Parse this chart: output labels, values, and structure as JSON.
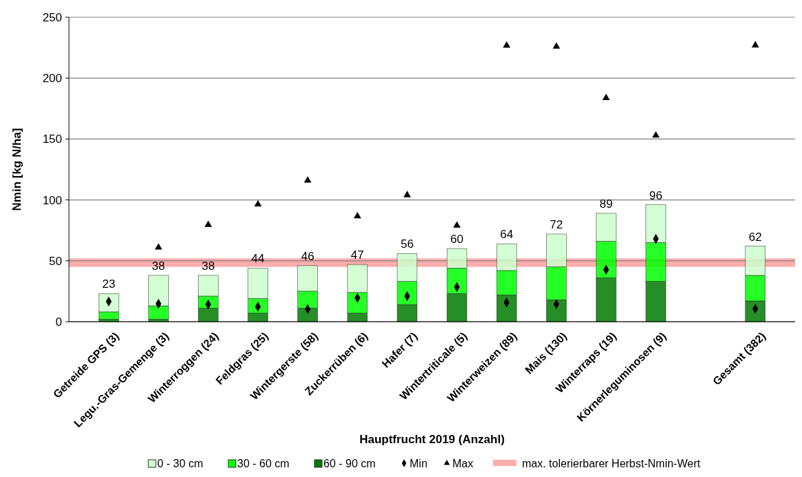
{
  "chart_data": {
    "type": "bar",
    "stacked": true,
    "xlabel": "Hauptfrucht 2019 (Anzahl)",
    "ylabel": "Nmin [kg N/ha]",
    "categories": [
      "Getreide GPS (3)",
      "Legu.-Gras-Gemenge (3)",
      "Winterroggen (24)",
      "Feldgras (25)",
      "Wintergerste (58)",
      "Zuckerrüben (6)",
      "Hafer (7)",
      "Wintertriticale (5)",
      "Winterweizen (89)",
      "Mais (130)",
      "Winterraps (19)",
      "Körnerleguminosen (9)",
      null,
      "Gesamt (382)"
    ],
    "series": [
      {
        "name": "60 - 90 cm",
        "color": "#007a00",
        "values": [
          2,
          2,
          11,
          7,
          11,
          7,
          14,
          23,
          22,
          18,
          36,
          33,
          null,
          17
        ]
      },
      {
        "name": "30 - 60 cm",
        "color": "#00ff00",
        "values": [
          6,
          11,
          10,
          12,
          14,
          17,
          19,
          21,
          20,
          27,
          30,
          32,
          null,
          21
        ]
      },
      {
        "name": "0 - 30 cm",
        "color": "#ccffcc",
        "values": [
          15,
          25,
          17,
          25,
          21,
          23,
          23,
          16,
          22,
          27,
          23,
          31,
          null,
          24
        ]
      },
      {
        "name": "Min",
        "type": "scatter",
        "marker": "diamond",
        "color": "#000000",
        "values": [
          16.6,
          14.7,
          14.2,
          12.3,
          10.4,
          19.5,
          21,
          28.5,
          15.7,
          14.4,
          42.7,
          68,
          null,
          10.6
        ]
      },
      {
        "name": "Max",
        "type": "scatter",
        "marker": "triangle",
        "color": "#000000",
        "values": [
          null,
          61,
          79.5,
          96.4,
          116,
          86.6,
          104,
          79,
          226.8,
          226,
          183.7,
          153,
          null,
          227
        ]
      }
    ],
    "totals": [
      "23",
      "38",
      "38",
      "44",
      "46",
      "47",
      "56",
      "60",
      "64",
      "72",
      "89",
      "96",
      null,
      "62"
    ],
    "bands": [
      {
        "axis": "y",
        "from": 45,
        "to": 52,
        "label": "max. tolerierbarer Herbst-Nmin-Wert",
        "color": "#ff9999"
      }
    ],
    "ylim": [
      0,
      250
    ],
    "yticks": [
      0,
      50,
      100,
      150,
      200,
      250
    ],
    "grid": "y",
    "legend": "bottom"
  }
}
